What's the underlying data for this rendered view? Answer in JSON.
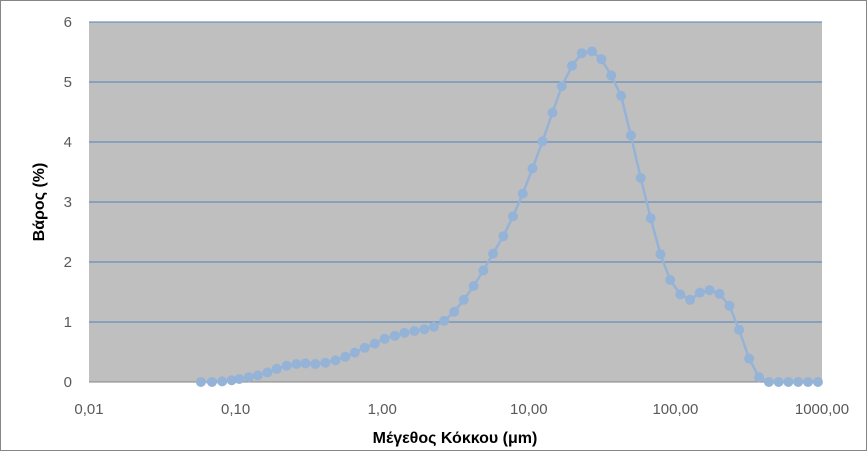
{
  "chart_data": {
    "type": "line",
    "title": "",
    "xlabel": "Μέγεθος Κόκκου (μm)",
    "ylabel": "Βάρος (%)",
    "x_scale": "log",
    "xlim": [
      0.01,
      1000
    ],
    "ylim": [
      0,
      6
    ],
    "x_tick_labels": [
      "0,01",
      "0,10",
      "1,00",
      "10,00",
      "100,00",
      "1000,00"
    ],
    "y_tick_labels": [
      "0",
      "1",
      "2",
      "3",
      "4",
      "5",
      "6"
    ],
    "grid": "horizontal",
    "legend": "none",
    "colors": {
      "plot_background": "#bfbfbf",
      "gridline": "#4f81bd",
      "series": "#95b3d7",
      "frame": "#868686"
    },
    "series": [
      {
        "x": [
          0.058,
          0.069,
          0.081,
          0.094,
          0.106,
          0.123,
          0.142,
          0.165,
          0.191,
          0.223,
          0.26,
          0.3,
          0.35,
          0.41,
          0.48,
          0.56,
          0.65,
          0.76,
          0.89,
          1.04,
          1.22,
          1.42,
          1.66,
          1.94,
          2.25,
          2.65,
          3.1,
          3.6,
          4.2,
          4.9,
          5.7,
          6.7,
          7.8,
          9.1,
          10.6,
          12.4,
          14.5,
          16.8,
          19.7,
          23,
          27,
          31.3,
          36.5,
          42.6,
          49.7,
          58,
          67.8,
          79,
          92.2,
          108,
          126,
          147,
          171,
          200,
          234,
          272,
          318,
          372,
          434,
          506,
          590,
          688,
          803,
          937
        ],
        "y": [
          0,
          0,
          0.01,
          0.03,
          0.05,
          0.08,
          0.11,
          0.16,
          0.22,
          0.27,
          0.3,
          0.31,
          0.3,
          0.32,
          0.36,
          0.42,
          0.49,
          0.57,
          0.64,
          0.72,
          0.77,
          0.82,
          0.85,
          0.88,
          0.92,
          1.02,
          1.17,
          1.37,
          1.6,
          1.86,
          2.14,
          2.43,
          2.76,
          3.14,
          3.56,
          4.01,
          4.49,
          4.93,
          5.27,
          5.48,
          5.51,
          5.38,
          5.11,
          4.77,
          4.11,
          3.4,
          2.73,
          2.13,
          1.7,
          1.46,
          1.37,
          1.49,
          1.53,
          1.47,
          1.27,
          0.87,
          0.39,
          0.08,
          0,
          0,
          0,
          0,
          0,
          0
        ]
      }
    ]
  }
}
